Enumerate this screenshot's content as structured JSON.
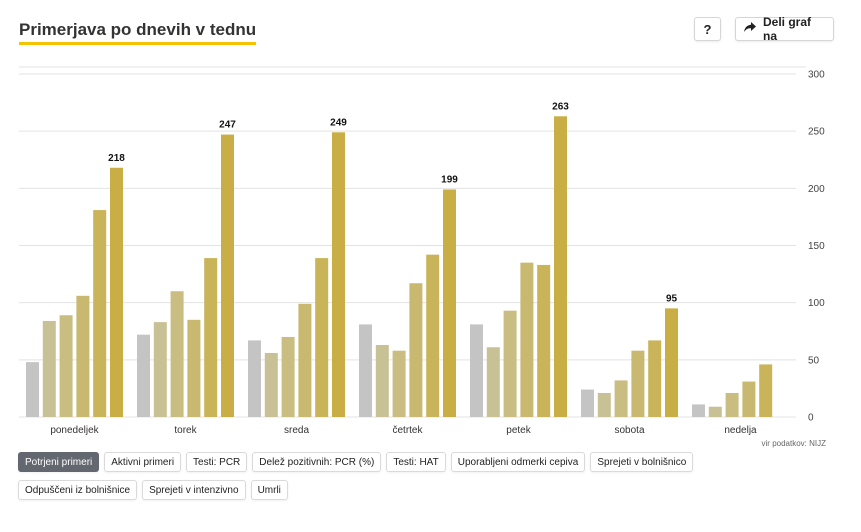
{
  "header": {
    "title": "Primerjava po dnevih v tednu",
    "help_label": "?",
    "share_label": "Deli graf na"
  },
  "source": "vir podatkov: NIJZ",
  "toolbar": {
    "buttons": [
      {
        "label": "Potrjeni primeri",
        "active": true
      },
      {
        "label": "Aktivni primeri",
        "active": false
      },
      {
        "label": "Testi: PCR",
        "active": false
      },
      {
        "label": "Delež pozitivnih: PCR (%)",
        "active": false
      },
      {
        "label": "Testi: HAT",
        "active": false
      },
      {
        "label": "Uporabljeni odmerki cepiva",
        "active": false
      },
      {
        "label": "Sprejeti v bolnišnico",
        "active": false
      },
      {
        "label": "Odpuščeni iz bolnišnice",
        "active": false
      },
      {
        "label": "Sprejeti v intenzivno",
        "active": false
      },
      {
        "label": "Umrli",
        "active": false
      }
    ]
  },
  "colors": {
    "series": [
      "#c4c4c4",
      "#c9c196",
      "#c9bd82",
      "#c9b86f",
      "#c9b45a",
      "#c8ae45",
      "#c6aa2e"
    ],
    "grid": "#e3e3e3",
    "title_underline": "#f2c500"
  },
  "chart_data": {
    "type": "bar",
    "title": "Primerjava po dnevih v tednu",
    "categories": [
      "ponedeljek",
      "torek",
      "sreda",
      "četrtek",
      "petek",
      "sobota",
      "nedelja"
    ],
    "series": [
      {
        "values": [
          48,
          72,
          67,
          81,
          81,
          24,
          11
        ]
      },
      {
        "values": [
          84,
          83,
          56,
          63,
          61,
          21,
          9
        ]
      },
      {
        "values": [
          89,
          110,
          70,
          58,
          93,
          32,
          21
        ]
      },
      {
        "values": [
          106,
          85,
          99,
          117,
          135,
          58,
          31
        ]
      },
      {
        "values": [
          181,
          139,
          139,
          142,
          133,
          67,
          46
        ]
      },
      {
        "values": [
          218,
          247,
          249,
          199,
          263,
          95,
          null
        ]
      }
    ],
    "data_labels": [
      "218",
      "247",
      "249",
      "199",
      "263",
      "95",
      ""
    ],
    "y_ticks": [
      "0",
      "50",
      "100",
      "150",
      "200",
      "250",
      "300"
    ],
    "ylim": [
      0,
      300
    ],
    "grid": true,
    "y_axis_position": "right"
  }
}
